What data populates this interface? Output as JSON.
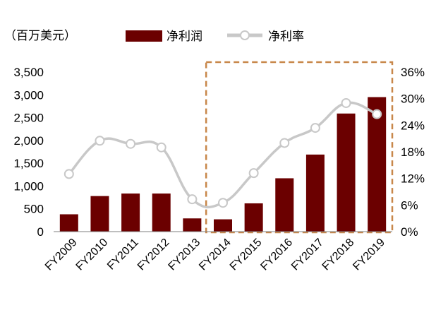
{
  "colors": {
    "bar": "#6b0000",
    "line": "#c8c8c8",
    "marker_fill": "#ffffff",
    "highlight_box": "#c8874a"
  },
  "chart_data": {
    "type": "bar+line",
    "unit_label": "（百万美元）",
    "categories": [
      "FY2009",
      "FY2010",
      "FY2011",
      "FY2012",
      "FY2013",
      "FY2014",
      "FY2015",
      "FY2016",
      "FY2017",
      "FY2018",
      "FY2019"
    ],
    "series": [
      {
        "name": "净利润",
        "type": "bar",
        "axis": "left",
        "values": [
          380,
          780,
          835,
          835,
          290,
          270,
          620,
          1170,
          1690,
          2590,
          2950
        ]
      },
      {
        "name": "净利率",
        "type": "line",
        "axis": "right",
        "values": [
          13.0,
          20.5,
          19.8,
          19.0,
          7.3,
          6.5,
          13.2,
          20.0,
          23.4,
          29.0,
          26.5
        ]
      }
    ],
    "left_axis": {
      "min": 0,
      "max": 3500,
      "ticks": [
        "0",
        "500",
        "1,000",
        "1,500",
        "2,000",
        "2,500",
        "3,000",
        "3,500"
      ]
    },
    "right_axis": {
      "min": 0,
      "max": 36,
      "ticks": [
        "0%",
        "6%",
        "12%",
        "18%",
        "24%",
        "30%",
        "36%"
      ]
    },
    "highlight_range": [
      "FY2014",
      "FY2019"
    ],
    "legend_position": "top"
  }
}
